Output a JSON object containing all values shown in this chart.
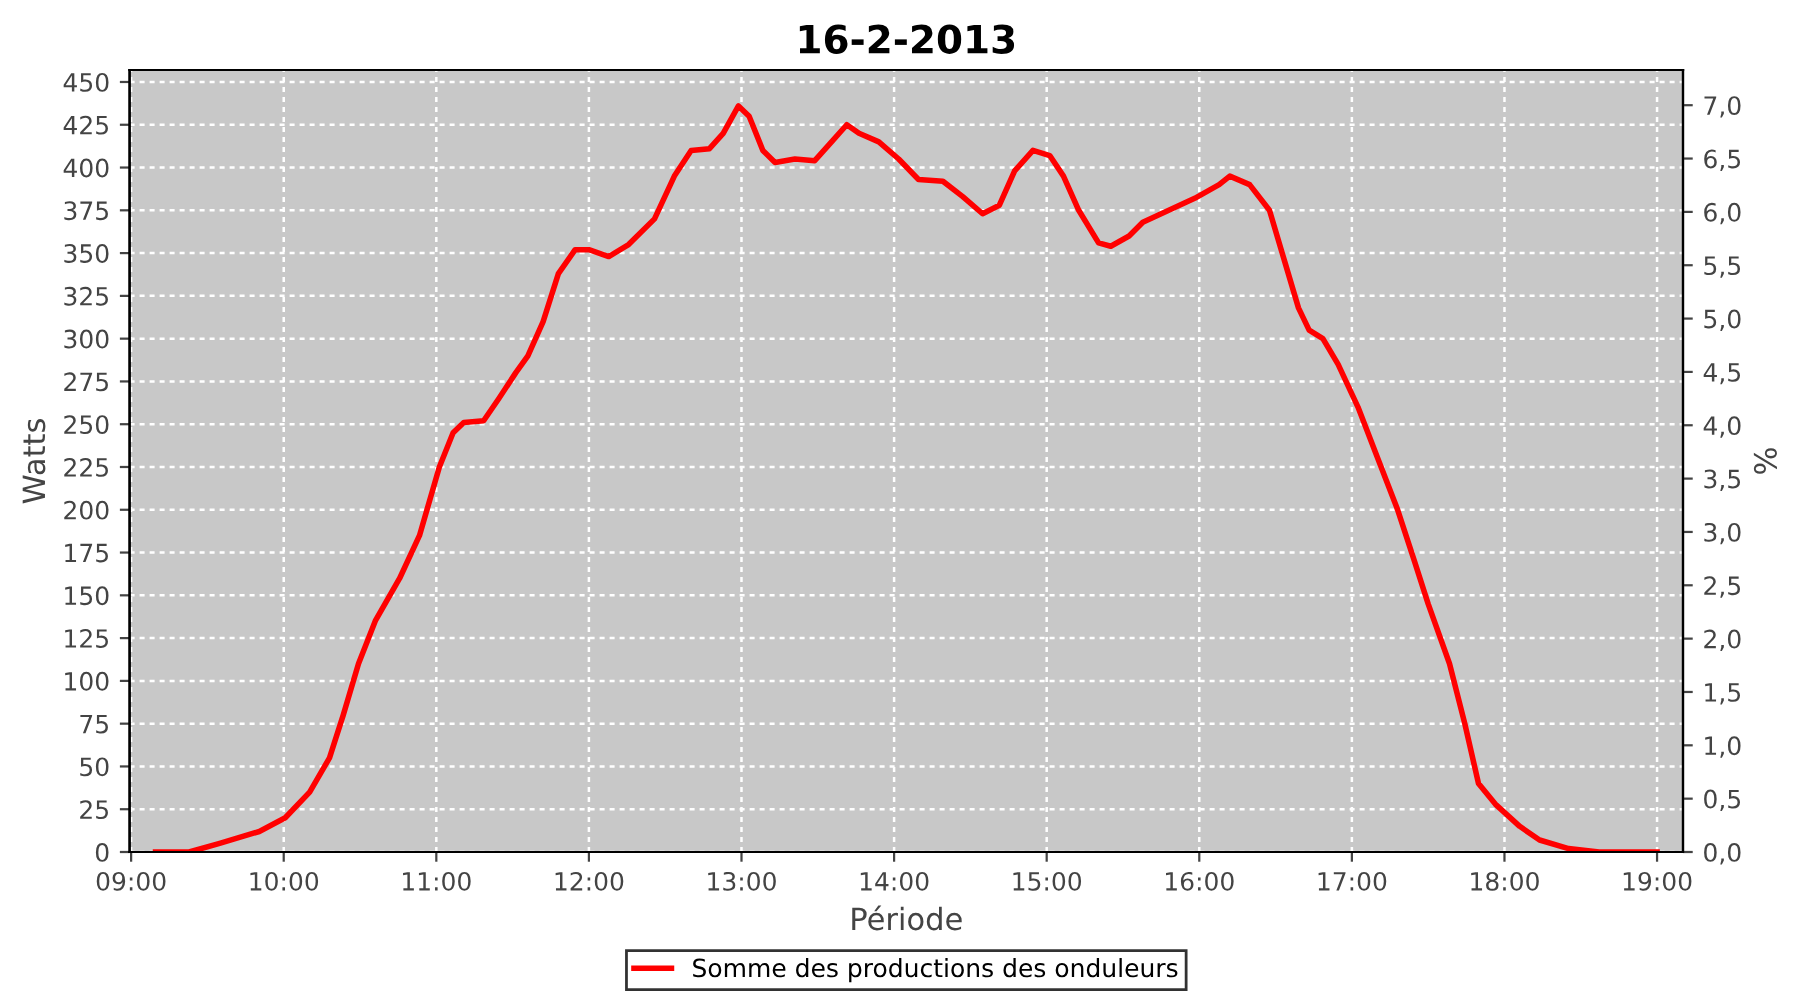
{
  "chart_data": {
    "type": "line",
    "title": "16-2-2013",
    "xlabel": "Période",
    "ylabel": "Watts",
    "y2label": "%",
    "x": [
      9.16,
      9.38,
      9.58,
      9.84,
      10.01,
      10.17,
      10.3,
      10.39,
      10.49,
      10.6,
      10.76,
      10.89,
      11.02,
      11.11,
      11.18,
      11.31,
      11.41,
      11.52,
      11.6,
      11.7,
      11.8,
      11.91,
      12.0,
      12.13,
      12.26,
      12.43,
      12.56,
      12.67,
      12.79,
      12.88,
      12.98,
      13.05,
      13.14,
      13.22,
      13.35,
      13.48,
      13.59,
      13.69,
      13.77,
      13.9,
      14.03,
      14.16,
      14.32,
      14.45,
      14.58,
      14.69,
      14.79,
      14.91,
      15.02,
      15.11,
      15.21,
      15.34,
      15.42,
      15.54,
      15.63,
      15.8,
      15.97,
      16.13,
      16.2,
      16.33,
      16.46,
      16.56,
      16.65,
      16.72,
      16.81,
      16.91,
      17.04,
      17.17,
      17.3,
      17.41,
      17.5,
      17.64,
      17.74,
      17.83,
      17.94,
      18.1,
      18.23,
      18.42,
      18.62,
      19.0
    ],
    "series": [
      {
        "name": "Somme des productions des onduleurs",
        "color": "#ff0000",
        "values": [
          0,
          0,
          5,
          12,
          20,
          35,
          55,
          80,
          110,
          135,
          160,
          185,
          225,
          245,
          251,
          252,
          265,
          280,
          290,
          310,
          338,
          352,
          352,
          348,
          355,
          370,
          395,
          410,
          411,
          420,
          436,
          430,
          410,
          403,
          405,
          404,
          415,
          425,
          420,
          415,
          405,
          393,
          392,
          383,
          373,
          378,
          398,
          410,
          407,
          395,
          375,
          356,
          354,
          360,
          368,
          375,
          382,
          390,
          395,
          390,
          375,
          345,
          318,
          305,
          300,
          285,
          260,
          230,
          200,
          170,
          145,
          110,
          75,
          40,
          28,
          15,
          7,
          2,
          0,
          0
        ]
      }
    ],
    "xlim": [
      8.99,
      19.17
    ],
    "xticks": [
      {
        "value": 9,
        "label": "09:00"
      },
      {
        "value": 10,
        "label": "10:00"
      },
      {
        "value": 11,
        "label": "11:00"
      },
      {
        "value": 12,
        "label": "12:00"
      },
      {
        "value": 13,
        "label": "13:00"
      },
      {
        "value": 14,
        "label": "14:00"
      },
      {
        "value": 15,
        "label": "15:00"
      },
      {
        "value": 16,
        "label": "16:00"
      },
      {
        "value": 17,
        "label": "17:00"
      },
      {
        "value": 18,
        "label": "18:00"
      },
      {
        "value": 19,
        "label": "19:00"
      }
    ],
    "ylim": [
      0,
      457
    ],
    "yticks": [
      0,
      25,
      50,
      75,
      100,
      125,
      150,
      175,
      200,
      225,
      250,
      275,
      300,
      325,
      350,
      375,
      400,
      425,
      450
    ],
    "y2lim": [
      0,
      7.33
    ],
    "y2ticks": [
      {
        "value": 0,
        "label": "0,0"
      },
      {
        "value": 0.5,
        "label": "0,5"
      },
      {
        "value": 1,
        "label": "1,0"
      },
      {
        "value": 1.5,
        "label": "1,5"
      },
      {
        "value": 2,
        "label": "2,0"
      },
      {
        "value": 2.5,
        "label": "2,5"
      },
      {
        "value": 3,
        "label": "3,0"
      },
      {
        "value": 3.5,
        "label": "3,5"
      },
      {
        "value": 4,
        "label": "4,0"
      },
      {
        "value": 4.5,
        "label": "4,5"
      },
      {
        "value": 5,
        "label": "5,0"
      },
      {
        "value": 5.5,
        "label": "5,5"
      },
      {
        "value": 6,
        "label": "6,0"
      },
      {
        "value": 6.5,
        "label": "6,5"
      },
      {
        "value": 7,
        "label": "7,0"
      }
    ],
    "grid": true,
    "legend": "bottom",
    "line_style": "solid",
    "marker": "none"
  }
}
